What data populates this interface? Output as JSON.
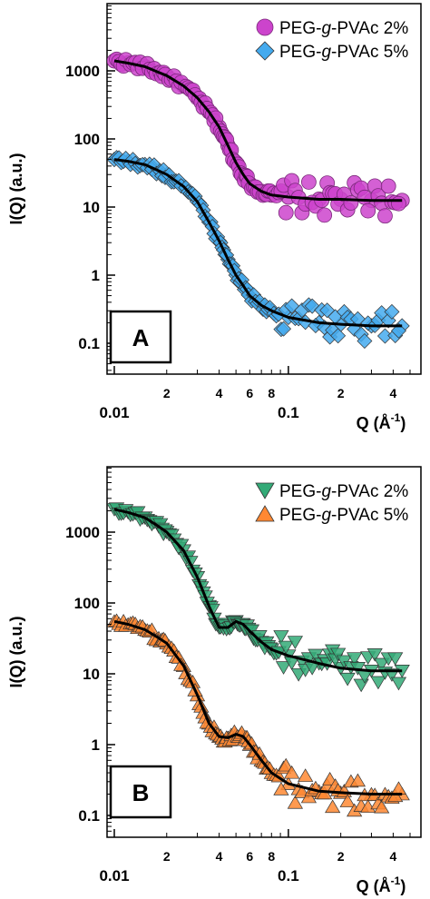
{
  "chart_data": [
    {
      "type": "scatter",
      "panel": "A",
      "xlabel": "Q (Å-1)",
      "ylabel": "I(Q) (a.u.)",
      "xscale": "log",
      "yscale": "log",
      "xlim": [
        0.01,
        0.5
      ],
      "ylim": [
        0.05,
        4000
      ],
      "x_ticks": [
        "0.01",
        "2",
        "4",
        "6",
        "8",
        "0.1",
        "2",
        "4"
      ],
      "y_ticks": [
        "1000",
        "100",
        "10",
        "1",
        "0.1"
      ],
      "legend_position": "top-right",
      "series": [
        {
          "name": "PEG-g-PVAc 2%",
          "marker": "circle",
          "color": "#cc44cc",
          "x": [
            0.01,
            0.012,
            0.015,
            0.018,
            0.02,
            0.025,
            0.03,
            0.035,
            0.04,
            0.045,
            0.05,
            0.055,
            0.06,
            0.07,
            0.08,
            0.1,
            0.15,
            0.2,
            0.3,
            0.45
          ],
          "y": [
            1400,
            1300,
            1150,
            950,
            850,
            600,
            400,
            250,
            150,
            80,
            45,
            30,
            22,
            17,
            15,
            14,
            13,
            13,
            12.5,
            12.5
          ],
          "fit_x": [
            0.01,
            0.012,
            0.015,
            0.018,
            0.02,
            0.025,
            0.03,
            0.035,
            0.04,
            0.045,
            0.05,
            0.055,
            0.06,
            0.07,
            0.08,
            0.1,
            0.15,
            0.2,
            0.3,
            0.45
          ],
          "fit_y": [
            1400,
            1300,
            1150,
            950,
            850,
            600,
            400,
            250,
            150,
            80,
            45,
            30,
            22,
            17,
            15,
            14,
            13,
            13,
            12.5,
            12.5
          ]
        },
        {
          "name": "PEG-g-PVAc 5%",
          "marker": "diamond",
          "color": "#44aaee",
          "x": [
            0.01,
            0.012,
            0.015,
            0.018,
            0.02,
            0.025,
            0.03,
            0.035,
            0.04,
            0.045,
            0.05,
            0.055,
            0.06,
            0.07,
            0.08,
            0.1,
            0.15,
            0.2,
            0.3,
            0.45
          ],
          "y": [
            50,
            47,
            42,
            34,
            30,
            20,
            12,
            6,
            3.2,
            1.7,
            1.0,
            0.7,
            0.5,
            0.36,
            0.3,
            0.24,
            0.2,
            0.19,
            0.18,
            0.18
          ],
          "fit_x": [
            0.01,
            0.012,
            0.015,
            0.018,
            0.02,
            0.025,
            0.03,
            0.035,
            0.04,
            0.045,
            0.05,
            0.055,
            0.06,
            0.07,
            0.08,
            0.1,
            0.15,
            0.2,
            0.3,
            0.45
          ],
          "fit_y": [
            50,
            47,
            42,
            34,
            30,
            20,
            12,
            6,
            3.2,
            1.7,
            1.0,
            0.7,
            0.5,
            0.36,
            0.3,
            0.24,
            0.2,
            0.19,
            0.18,
            0.18
          ]
        }
      ]
    },
    {
      "type": "scatter",
      "panel": "B",
      "xlabel": "Q (Å-1)",
      "ylabel": "I(Q) (a.u.)",
      "xscale": "log",
      "yscale": "log",
      "xlim": [
        0.01,
        0.5
      ],
      "ylim": [
        0.07,
        5000
      ],
      "x_ticks": [
        "0.01",
        "2",
        "4",
        "6",
        "8",
        "0.1",
        "2",
        "4"
      ],
      "y_ticks": [
        "1000",
        "100",
        "10",
        "1",
        "0.1"
      ],
      "legend_position": "top-right",
      "series": [
        {
          "name": "PEG-g-PVAc 2%",
          "marker": "triangle-down",
          "color": "#33aa77",
          "x": [
            0.01,
            0.012,
            0.015,
            0.018,
            0.02,
            0.025,
            0.03,
            0.035,
            0.04,
            0.045,
            0.05,
            0.055,
            0.06,
            0.07,
            0.08,
            0.1,
            0.15,
            0.2,
            0.3,
            0.45
          ],
          "y": [
            2100,
            1900,
            1600,
            1200,
            1000,
            550,
            230,
            90,
            45,
            45,
            55,
            50,
            40,
            28,
            22,
            18,
            14,
            12,
            11,
            11
          ],
          "fit_x": [
            0.01,
            0.012,
            0.015,
            0.018,
            0.02,
            0.025,
            0.03,
            0.035,
            0.04,
            0.045,
            0.05,
            0.055,
            0.06,
            0.07,
            0.08,
            0.1,
            0.15,
            0.2,
            0.3,
            0.45
          ],
          "fit_y": [
            2100,
            1900,
            1600,
            1200,
            1000,
            550,
            230,
            90,
            45,
            45,
            55,
            50,
            40,
            28,
            22,
            18,
            14,
            12,
            11,
            11
          ]
        },
        {
          "name": "PEG-g-PVAc 5%",
          "marker": "triangle-up",
          "color": "#ff8833",
          "x": [
            0.01,
            0.012,
            0.015,
            0.018,
            0.02,
            0.025,
            0.03,
            0.035,
            0.04,
            0.045,
            0.05,
            0.055,
            0.06,
            0.07,
            0.08,
            0.1,
            0.15,
            0.2,
            0.3,
            0.45
          ],
          "y": [
            55,
            50,
            42,
            32,
            27,
            13,
            5,
            2,
            1.3,
            1.25,
            1.4,
            1.3,
            1.0,
            0.6,
            0.4,
            0.28,
            0.22,
            0.21,
            0.2,
            0.2
          ],
          "fit_x": [
            0.01,
            0.012,
            0.015,
            0.018,
            0.02,
            0.025,
            0.03,
            0.035,
            0.04,
            0.045,
            0.05,
            0.055,
            0.06,
            0.07,
            0.08,
            0.1,
            0.15,
            0.2,
            0.3,
            0.45
          ],
          "fit_y": [
            55,
            50,
            42,
            32,
            27,
            13,
            5,
            2,
            1.3,
            1.25,
            1.4,
            1.3,
            1.0,
            0.6,
            0.4,
            0.28,
            0.22,
            0.21,
            0.2,
            0.2
          ]
        }
      ]
    }
  ]
}
